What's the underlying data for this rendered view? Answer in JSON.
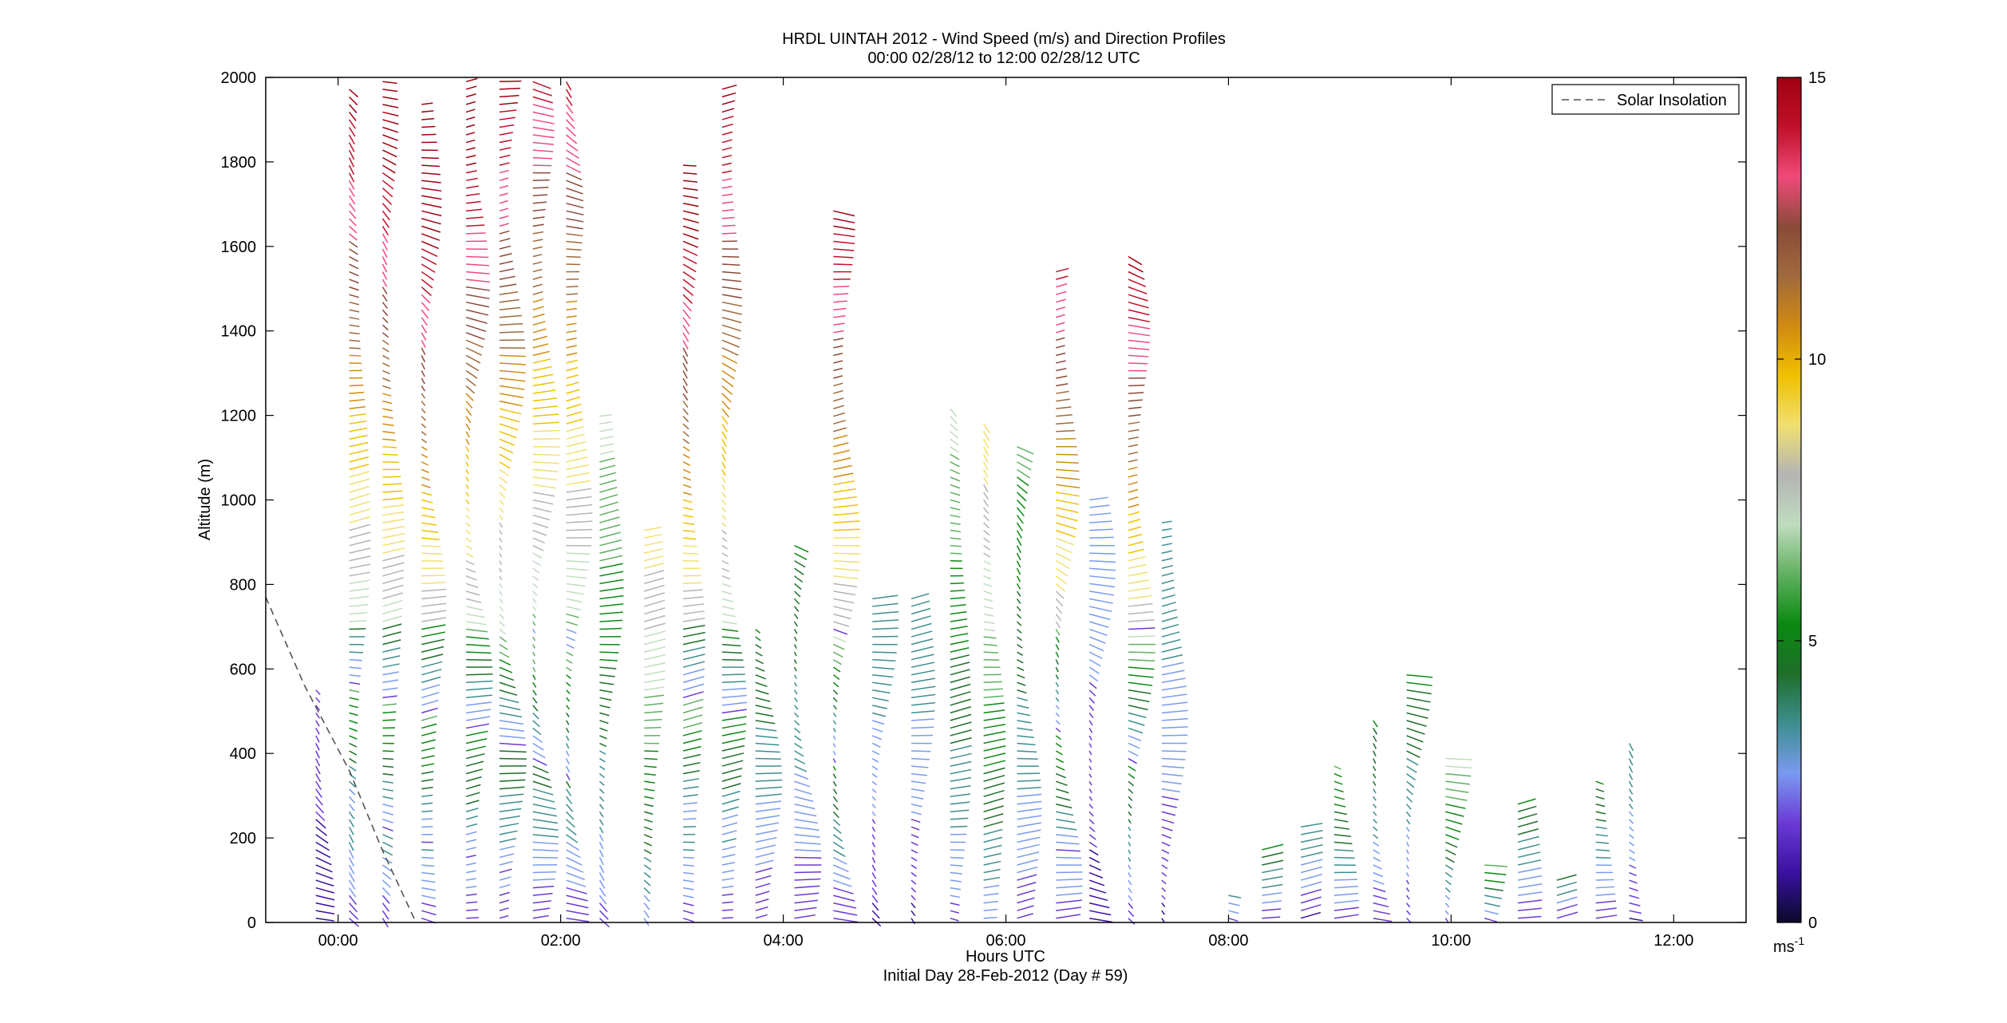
{
  "chart_data": {
    "type": "wind_barb_profile",
    "title": "HRDL UINTAH 2012 - Wind Speed (m/s) and Direction Profiles",
    "subtitle": "00:00 02/28/12 to 12:00 02/28/12  UTC",
    "xlabel": "Hours UTC",
    "xlabel2": "Initial Day 28-Feb-2012 (Day # 59)",
    "ylabel": "Altitude (m)",
    "xlim": [
      -0.65,
      12.65
    ],
    "ylim": [
      0,
      2000
    ],
    "xticks": [
      0,
      2,
      4,
      6,
      8,
      10,
      12
    ],
    "xtick_labels": [
      "00:00",
      "02:00",
      "04:00",
      "06:00",
      "08:00",
      "10:00",
      "12:00"
    ],
    "yticks": [
      0,
      200,
      400,
      600,
      800,
      1000,
      1200,
      1400,
      1600,
      1800,
      2000
    ],
    "ytick_labels": [
      "0",
      "200",
      "400",
      "600",
      "800",
      "1000",
      "1200",
      "1400",
      "1600",
      "1800",
      "2000"
    ],
    "legend": {
      "position": "top-right",
      "entries": [
        {
          "label": "Solar Insolation",
          "style": "dashed",
          "color": "#555555"
        }
      ]
    },
    "colorbar": {
      "min": 0,
      "max": 15,
      "ticks": [
        0,
        5,
        10,
        15
      ],
      "tick_labels": [
        "0",
        "5",
        "10",
        "15"
      ],
      "unit": "ms",
      "unit_exp": "-1",
      "colors": [
        "#0a0a2a",
        "#3a10a0",
        "#6a3ad6",
        "#7a9af0",
        "#3d8f8f",
        "#1e6e2a",
        "#0a8a10",
        "#60b060",
        "#c0dcc0",
        "#b4b4b4",
        "#f0e070",
        "#f0c000",
        "#d08a10",
        "#a06a3c",
        "#8a4a3a",
        "#f04a7a",
        "#c0102a",
        "#a00010"
      ]
    },
    "solar_insolation": {
      "x": [
        -0.65,
        -0.3,
        0.1,
        0.4,
        0.7
      ],
      "y": [
        770,
        560,
        360,
        170,
        0
      ]
    },
    "profiles": [
      {
        "t": -0.2,
        "top": 550,
        "speed": 2
      },
      {
        "t": 0.1,
        "top": 1980,
        "speed": 12
      },
      {
        "t": 0.4,
        "top": 2000,
        "speed": 13
      },
      {
        "t": 0.75,
        "top": 1950,
        "speed": 14
      },
      {
        "t": 1.15,
        "top": 2000,
        "speed": 13
      },
      {
        "t": 1.45,
        "top": 2000,
        "speed": 12
      },
      {
        "t": 1.75,
        "top": 2000,
        "speed": 11
      },
      {
        "t": 2.05,
        "top": 2000,
        "speed": 11
      },
      {
        "t": 2.35,
        "top": 1200,
        "speed": 7
      },
      {
        "t": 2.75,
        "top": 930,
        "speed": 9
      },
      {
        "t": 3.1,
        "top": 1800,
        "speed": 13
      },
      {
        "t": 3.45,
        "top": 1980,
        "speed": 12
      },
      {
        "t": 3.75,
        "top": 700,
        "speed": 5
      },
      {
        "t": 4.1,
        "top": 900,
        "speed": 5
      },
      {
        "t": 4.45,
        "top": 1700,
        "speed": 12
      },
      {
        "t": 4.8,
        "top": 780,
        "speed": 4
      },
      {
        "t": 5.15,
        "top": 780,
        "speed": 4
      },
      {
        "t": 5.5,
        "top": 1230,
        "speed": 7
      },
      {
        "t": 5.8,
        "top": 1180,
        "speed": 9
      },
      {
        "t": 6.1,
        "top": 1140,
        "speed": 6
      },
      {
        "t": 6.45,
        "top": 1550,
        "speed": 11
      },
      {
        "t": 6.75,
        "top": 1000,
        "speed": 3
      },
      {
        "t": 7.1,
        "top": 1590,
        "speed": 12
      },
      {
        "t": 7.4,
        "top": 960,
        "speed": 4
      },
      {
        "t": 8.0,
        "top": 80,
        "speed": 4
      },
      {
        "t": 8.3,
        "top": 180,
        "speed": 5
      },
      {
        "t": 8.65,
        "top": 240,
        "speed": 4
      },
      {
        "t": 8.95,
        "top": 380,
        "speed": 6
      },
      {
        "t": 9.3,
        "top": 490,
        "speed": 5
      },
      {
        "t": 9.6,
        "top": 590,
        "speed": 5
      },
      {
        "t": 9.95,
        "top": 400,
        "speed": 7
      },
      {
        "t": 10.3,
        "top": 140,
        "speed": 6
      },
      {
        "t": 10.6,
        "top": 290,
        "speed": 5
      },
      {
        "t": 10.95,
        "top": 100,
        "speed": 4
      },
      {
        "t": 11.3,
        "top": 350,
        "speed": 5
      },
      {
        "t": 11.6,
        "top": 440,
        "speed": 4
      }
    ]
  }
}
